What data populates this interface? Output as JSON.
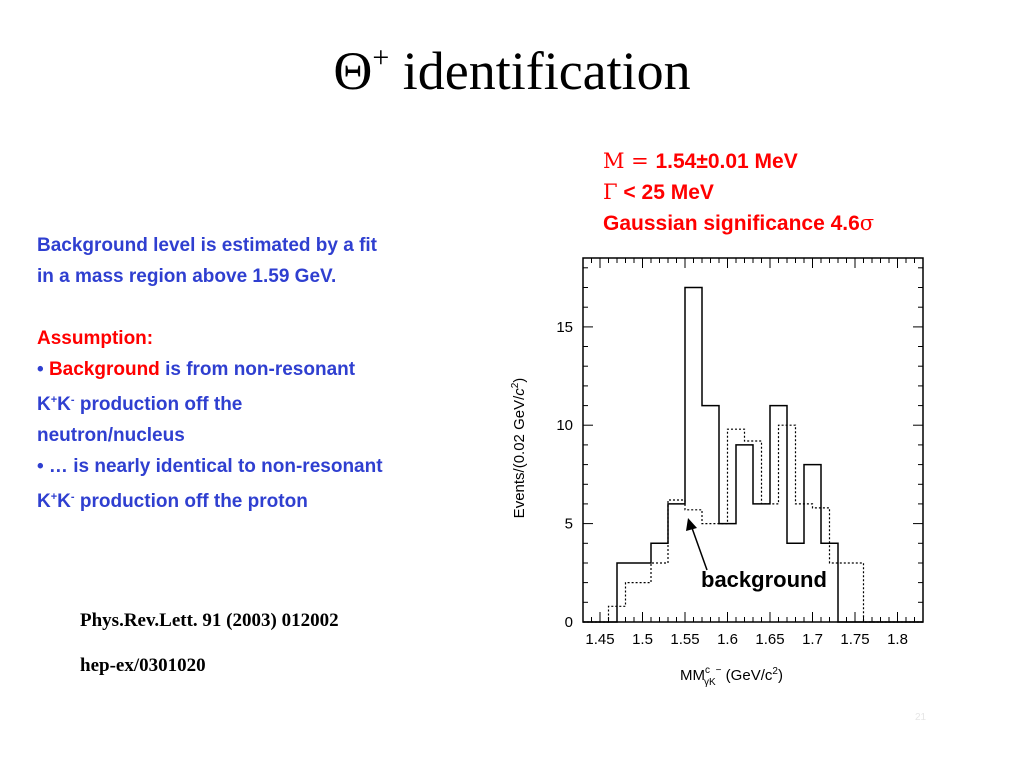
{
  "slide": {
    "title_main": "Θ",
    "title_sup": "+",
    "title_rest": " identification",
    "page_number": "21"
  },
  "params": {
    "mass_symbol": "M = ",
    "mass_value": "1.54±0.01 MeV",
    "width_symbol": "Γ",
    "width_value": " < 25 MeV",
    "significance_text": "Gaussian significance 4.6",
    "significance_symbol": "σ"
  },
  "text": {
    "bg_line1": "Background level is estimated by a fit",
    "bg_line2": "in a mass region above 1.59 GeV.",
    "assumption_label": "Assumption:",
    "bullet1_prefix": "• ",
    "bullet1_red": "Background",
    "bullet1_rest": " is from non-resonant",
    "kk_k1": "K",
    "kk_plus": "+",
    "kk_k2": "K",
    "kk_minus": "-",
    "bullet1_line2_rest": "  production off the",
    "bullet1_line3": "neutron/nucleus",
    "bullet2_line1": "• … is nearly identical to non-resonant",
    "bullet2_line2_rest": "  production off the proton"
  },
  "refs": {
    "journal": "Phys.Rev.Lett. 91 (2003) 012002",
    "arxiv": "hep-ex/0301020"
  },
  "annotation": {
    "label": "background"
  },
  "chart_data": {
    "type": "histogram",
    "ylabel_main": "Events/(0.02 GeV/",
    "ylabel_c": "c",
    "ylabel_exp": "2",
    "ylabel_close": ")",
    "xlabel_mm": "MM",
    "xlabel_sup": "c",
    "xlabel_sub": "γK",
    "xlabel_minus": "−",
    "xlabel_units": " (GeV/c",
    "xlabel_exp": "2",
    "xlabel_close": ")",
    "xlim": [
      1.43,
      1.83
    ],
    "ylim": [
      0,
      18.5
    ],
    "x_ticks": [
      1.45,
      1.5,
      1.55,
      1.6,
      1.65,
      1.7,
      1.75,
      1.8
    ],
    "x_tick_labels": [
      "1.45",
      "1.5",
      "1.55",
      "1.6",
      "1.65",
      "1.7",
      "1.75",
      "1.8"
    ],
    "y_ticks": [
      0,
      5,
      10,
      15
    ],
    "y_tick_labels": [
      "0",
      "5",
      "10",
      "15"
    ],
    "bin_edges": [
      1.43,
      1.44,
      1.45,
      1.46,
      1.47,
      1.48,
      1.49,
      1.5,
      1.51,
      1.52,
      1.53,
      1.54,
      1.55,
      1.56,
      1.57,
      1.58,
      1.59,
      1.6,
      1.61,
      1.62,
      1.63,
      1.64,
      1.65,
      1.66,
      1.67,
      1.68,
      1.69,
      1.7,
      1.71,
      1.72,
      1.73,
      1.74,
      1.75,
      1.76,
      1.77,
      1.78,
      1.79,
      1.8,
      1.81,
      1.82,
      1.83
    ],
    "series": [
      {
        "style": "solid",
        "values": [
          0,
          0,
          0,
          0,
          3,
          3,
          3,
          3,
          4,
          4,
          6,
          6,
          17,
          17,
          11,
          11,
          5,
          5,
          9,
          9,
          6,
          6,
          11,
          11,
          4,
          4,
          8,
          8,
          4,
          4,
          0,
          0,
          0,
          0,
          0,
          0,
          0,
          0,
          0,
          0
        ]
      },
      {
        "style": "dotted",
        "values": [
          0,
          0,
          0,
          0.8,
          0.8,
          2,
          2,
          2,
          3,
          3,
          6.2,
          6.2,
          5.7,
          5.7,
          5,
          5,
          5,
          9.8,
          9.8,
          9.2,
          9.2,
          6,
          6,
          10,
          10,
          6,
          6,
          5.8,
          5.8,
          3,
          3,
          3,
          3,
          0,
          0,
          0,
          0,
          0,
          0,
          0
        ]
      }
    ]
  },
  "colors": {
    "blue_text": "#2f3fd0",
    "red_text": "#ff0000"
  }
}
